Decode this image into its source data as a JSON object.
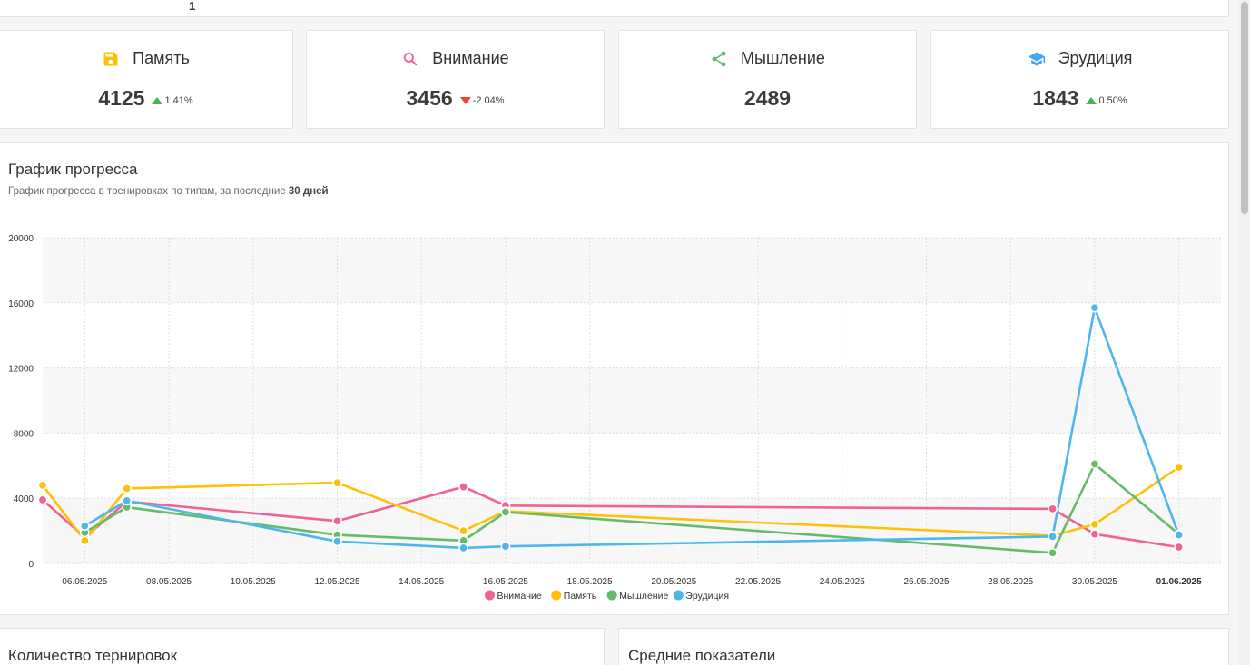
{
  "top_card": {
    "value": "1"
  },
  "stats": [
    {
      "label": "Память",
      "value": "4125",
      "delta": "1.41%",
      "direction": "up",
      "icon": "floppy-disk-icon",
      "color": "#ffc107"
    },
    {
      "label": "Внимание",
      "value": "3456",
      "delta": "-2.04%",
      "direction": "down",
      "icon": "search-icon",
      "color": "#f06292"
    },
    {
      "label": "Мышление",
      "value": "2489",
      "delta": "",
      "direction": "none",
      "icon": "share-icon",
      "color": "#66bb6a"
    },
    {
      "label": "Эрудиция",
      "value": "1843",
      "delta": "0.50%",
      "direction": "up",
      "icon": "graduation-cap-icon",
      "color": "#42a5f5"
    }
  ],
  "progress_card": {
    "title": "График прогресса",
    "subtitle_prefix": "График прогресса в тренировках по типам, за последние ",
    "subtitle_bold": "30 дней"
  },
  "chart_data": {
    "type": "line",
    "title": "График прогресса",
    "xlabel": "",
    "ylabel": "",
    "ylim": [
      0,
      20000
    ],
    "yticks": [
      0,
      4000,
      8000,
      12000,
      16000,
      20000
    ],
    "xlim": [
      "2025-05-05",
      "2025-06-02"
    ],
    "x_tick_labels": [
      "06.05.2025",
      "08.05.2025",
      "10.05.2025",
      "12.05.2025",
      "14.05.2025",
      "16.05.2025",
      "18.05.2025",
      "20.05.2025",
      "22.05.2025",
      "24.05.2025",
      "26.05.2025",
      "28.05.2025",
      "30.05.2025",
      "01.06.2025"
    ],
    "x_tick_dates": [
      "2025-05-06",
      "2025-05-08",
      "2025-05-10",
      "2025-05-12",
      "2025-05-14",
      "2025-05-16",
      "2025-05-18",
      "2025-05-20",
      "2025-05-22",
      "2025-05-24",
      "2025-05-26",
      "2025-05-28",
      "2025-05-30",
      "2025-06-01"
    ],
    "bold_tick": "01.06.2025",
    "grid": true,
    "legend_placement": "bottom-center",
    "series": [
      {
        "name": "Внимание",
        "color": "#f06292",
        "points": [
          [
            "2025-05-05",
            3900
          ],
          [
            "2025-05-06",
            1600
          ],
          [
            "2025-05-07",
            3800
          ],
          [
            "2025-05-12",
            2600
          ],
          [
            "2025-05-15",
            4700
          ],
          [
            "2025-05-16",
            3550
          ],
          [
            "2025-05-29",
            3350
          ],
          [
            "2025-05-30",
            1800
          ],
          [
            "2025-06-01",
            1000
          ]
        ]
      },
      {
        "name": "Память",
        "color": "#ffc107",
        "points": [
          [
            "2025-05-05",
            4800
          ],
          [
            "2025-05-06",
            1400
          ],
          [
            "2025-05-07",
            4600
          ],
          [
            "2025-05-12",
            4950
          ],
          [
            "2025-05-15",
            2000
          ],
          [
            "2025-05-16",
            3200
          ],
          [
            "2025-05-29",
            1700
          ],
          [
            "2025-05-30",
            2400
          ],
          [
            "2025-06-01",
            5900
          ]
        ]
      },
      {
        "name": "Мышление",
        "color": "#66bb6a",
        "points": [
          [
            "2025-05-06",
            1900
          ],
          [
            "2025-05-07",
            3450
          ],
          [
            "2025-05-12",
            1750
          ],
          [
            "2025-05-15",
            1400
          ],
          [
            "2025-05-16",
            3150
          ],
          [
            "2025-05-29",
            650
          ],
          [
            "2025-05-30",
            6100
          ],
          [
            "2025-06-01",
            1800
          ]
        ]
      },
      {
        "name": "Эрудиция",
        "color": "#4fb6ec",
        "points": [
          [
            "2025-05-06",
            2300
          ],
          [
            "2025-05-07",
            3850
          ],
          [
            "2025-05-12",
            1350
          ],
          [
            "2025-05-15",
            950
          ],
          [
            "2025-05-16",
            1050
          ],
          [
            "2025-05-29",
            1650
          ],
          [
            "2025-05-30",
            15700
          ],
          [
            "2025-06-01",
            1750
          ]
        ]
      }
    ]
  },
  "bottom_cards": [
    {
      "title": "Количество тернировок"
    },
    {
      "title": "Средние показатели"
    }
  ]
}
